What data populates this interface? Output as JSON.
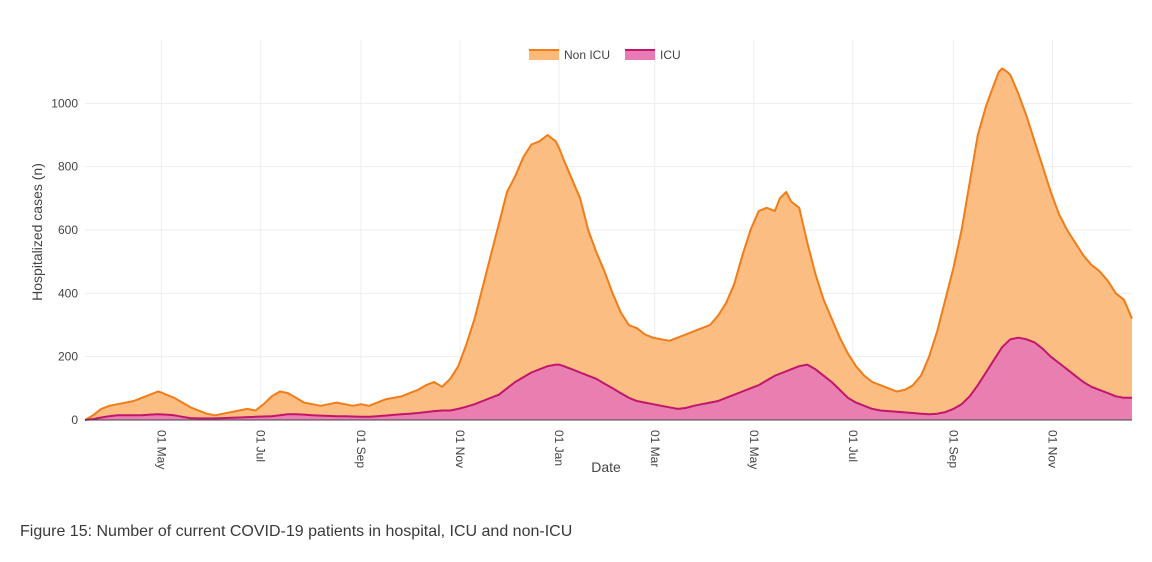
{
  "caption": "Figure 15: Number of current COVID-19 patients in hospital, ICU and non-ICU",
  "colors": {
    "non_icu_fill": "#fbb97a",
    "non_icu_line": "#f27c18",
    "icu_fill": "#e87bb3",
    "icu_line": "#c2166c",
    "grid": "#eeeeee",
    "zero_line": "#444444"
  },
  "chart_data": {
    "type": "area",
    "title": "",
    "xlabel": "Date",
    "ylabel": "Hospitalized cases (n)",
    "ylim": [
      0,
      1200
    ],
    "yticks": [
      0,
      200,
      400,
      600,
      800,
      1000
    ],
    "xlim": [
      0,
      645
    ],
    "x_unit": "days since 15 Mar (first year)",
    "xtick_labels": [
      {
        "day": 47,
        "label": "01 May"
      },
      {
        "day": 108,
        "label": "01 Jul"
      },
      {
        "day": 170,
        "label": "01 Sep"
      },
      {
        "day": 231,
        "label": "01 Nov"
      },
      {
        "day": 292,
        "label": "01 Jan"
      },
      {
        "day": 351,
        "label": "01 Mar"
      },
      {
        "day": 412,
        "label": "01 May"
      },
      {
        "day": 473,
        "label": "01 Jul"
      },
      {
        "day": 535,
        "label": "01 Sep"
      },
      {
        "day": 596,
        "label": "01 Nov"
      }
    ],
    "legend": [
      "Non ICU",
      "ICU"
    ],
    "legend_position": "top-center",
    "grid": true,
    "series": [
      {
        "name": "Non ICU",
        "x": [
          0,
          5,
          10,
          15,
          20,
          25,
          30,
          35,
          40,
          45,
          48,
          50,
          55,
          60,
          65,
          70,
          75,
          80,
          85,
          90,
          95,
          100,
          105,
          110,
          115,
          120,
          125,
          130,
          135,
          140,
          145,
          150,
          155,
          160,
          165,
          170,
          175,
          180,
          185,
          190,
          195,
          200,
          205,
          210,
          215,
          220,
          225,
          230,
          235,
          240,
          245,
          250,
          255,
          260,
          265,
          270,
          275,
          280,
          285,
          290,
          292,
          295,
          300,
          305,
          310,
          315,
          320,
          325,
          330,
          335,
          340,
          345,
          350,
          355,
          360,
          365,
          370,
          375,
          380,
          385,
          390,
          395,
          400,
          405,
          410,
          415,
          420,
          425,
          428,
          432,
          435,
          440,
          445,
          450,
          455,
          460,
          465,
          470,
          475,
          480,
          485,
          490,
          495,
          500,
          505,
          510,
          515,
          520,
          525,
          530,
          535,
          540,
          545,
          550,
          555,
          560,
          563,
          565,
          568,
          570,
          575,
          580,
          585,
          590,
          595,
          600,
          605,
          610,
          615,
          620,
          625,
          630,
          635,
          640,
          645
        ],
        "values": [
          0,
          15,
          35,
          45,
          50,
          55,
          60,
          70,
          80,
          90,
          85,
          80,
          70,
          55,
          40,
          30,
          20,
          15,
          20,
          25,
          30,
          35,
          30,
          50,
          75,
          90,
          85,
          70,
          55,
          50,
          45,
          50,
          55,
          50,
          45,
          50,
          45,
          55,
          65,
          70,
          75,
          85,
          95,
          110,
          120,
          105,
          130,
          170,
          240,
          320,
          420,
          520,
          620,
          720,
          770,
          830,
          870,
          880,
          900,
          880,
          860,
          820,
          760,
          700,
          600,
          530,
          470,
          400,
          340,
          300,
          290,
          270,
          260,
          255,
          250,
          260,
          270,
          280,
          290,
          300,
          330,
          370,
          430,
          520,
          600,
          660,
          670,
          660,
          700,
          720,
          690,
          670,
          560,
          460,
          380,
          320,
          260,
          210,
          170,
          140,
          120,
          110,
          100,
          90,
          95,
          110,
          140,
          200,
          280,
          380,
          480,
          600,
          750,
          900,
          990,
          1060,
          1100,
          1110,
          1100,
          1090,
          1030,
          960,
          880,
          800,
          720,
          650,
          600,
          560,
          520,
          490,
          470,
          440,
          400,
          380,
          320
        ]
      },
      {
        "name": "ICU",
        "x": [
          0,
          5,
          10,
          15,
          20,
          25,
          30,
          35,
          40,
          45,
          50,
          55,
          60,
          65,
          70,
          75,
          80,
          85,
          90,
          95,
          100,
          105,
          110,
          115,
          120,
          125,
          130,
          135,
          140,
          145,
          150,
          155,
          160,
          165,
          170,
          175,
          180,
          185,
          190,
          195,
          200,
          205,
          210,
          215,
          220,
          225,
          230,
          235,
          240,
          245,
          250,
          255,
          260,
          265,
          270,
          275,
          280,
          285,
          290,
          292,
          295,
          300,
          305,
          310,
          315,
          320,
          325,
          330,
          335,
          340,
          345,
          350,
          355,
          360,
          365,
          370,
          375,
          380,
          385,
          390,
          395,
          400,
          405,
          410,
          415,
          420,
          425,
          430,
          435,
          440,
          445,
          450,
          455,
          460,
          465,
          470,
          475,
          480,
          485,
          490,
          495,
          500,
          505,
          510,
          515,
          520,
          525,
          530,
          535,
          540,
          545,
          550,
          555,
          560,
          565,
          570,
          575,
          580,
          585,
          590,
          595,
          600,
          605,
          610,
          615,
          620,
          625,
          630,
          635,
          640,
          645
        ],
        "values": [
          0,
          3,
          8,
          12,
          15,
          15,
          15,
          15,
          17,
          18,
          17,
          15,
          10,
          6,
          5,
          5,
          5,
          6,
          7,
          8,
          9,
          10,
          11,
          12,
          15,
          18,
          18,
          17,
          15,
          14,
          13,
          12,
          12,
          11,
          10,
          10,
          12,
          14,
          16,
          18,
          20,
          22,
          25,
          28,
          30,
          30,
          35,
          42,
          50,
          60,
          70,
          80,
          100,
          120,
          135,
          150,
          160,
          170,
          175,
          175,
          170,
          160,
          150,
          140,
          130,
          115,
          100,
          85,
          70,
          60,
          55,
          50,
          45,
          40,
          35,
          38,
          45,
          50,
          55,
          60,
          70,
          80,
          90,
          100,
          110,
          125,
          140,
          150,
          160,
          170,
          175,
          160,
          140,
          120,
          95,
          70,
          55,
          45,
          35,
          30,
          28,
          26,
          24,
          22,
          20,
          18,
          20,
          25,
          35,
          50,
          75,
          110,
          150,
          190,
          230,
          255,
          260,
          255,
          245,
          225,
          200,
          180,
          160,
          140,
          120,
          105,
          95,
          85,
          75,
          70,
          70
        ]
      }
    ]
  }
}
